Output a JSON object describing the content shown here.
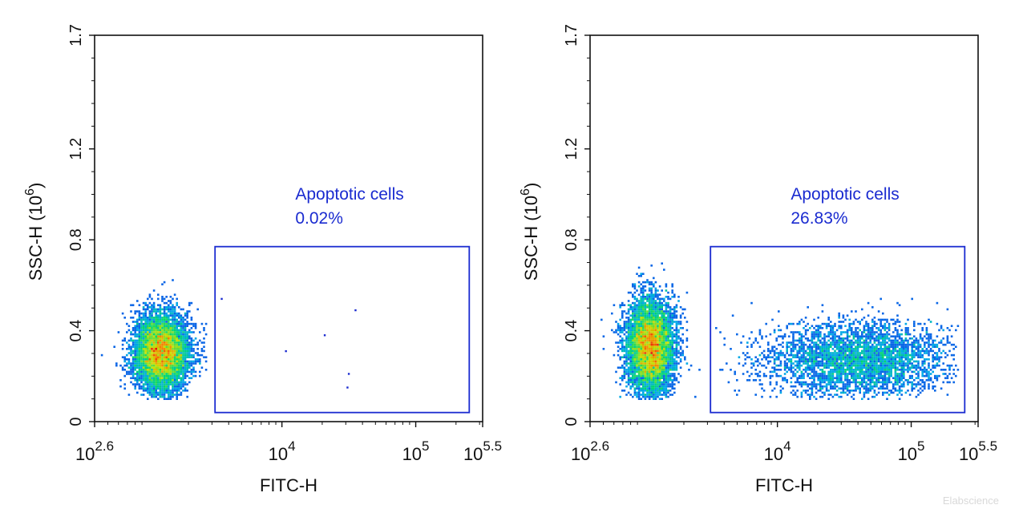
{
  "watermark": "Elabscience",
  "colors": {
    "axis": "#111111",
    "gate": "#1a2bd0"
  },
  "chart_data": [
    {
      "type": "scatter",
      "plot_style": "density-dot-plot",
      "xlabel": "FITC-H",
      "ylabel": "SSC-H",
      "ylabel_unit": {
        "base": "10",
        "exp": "6"
      },
      "x_scale": "log10",
      "xlim_exp": [
        2.6,
        5.5
      ],
      "x_ticks": [
        {
          "exp": 2.6,
          "base": "10",
          "sup": "2.6"
        },
        {
          "exp": 4,
          "base": "10",
          "sup": "4"
        },
        {
          "exp": 5,
          "base": "10",
          "sup": "5"
        },
        {
          "exp": 5.5,
          "base": "10",
          "sup": "5.5"
        }
      ],
      "ylim": [
        0,
        1.7
      ],
      "y_ticks": [
        {
          "value": 0,
          "label": "0"
        },
        {
          "value": 0.4,
          "label": "0.4"
        },
        {
          "value": 0.8,
          "label": "0.8"
        },
        {
          "value": 1.2,
          "label": "1.2"
        },
        {
          "value": 1.7,
          "label": "1.7"
        }
      ],
      "gate": {
        "label": "Apoptotic cells",
        "percent": "0.02%",
        "x_exp_range": [
          3.5,
          5.4
        ],
        "y_range": [
          0.04,
          0.77
        ]
      },
      "populations": [
        {
          "x_exp_center": 3.1,
          "y_center": 0.28,
          "x_exp_sd": 0.1,
          "y_sd": 0.08,
          "relative_count": 1.0,
          "x_exp_range": [
            2.61,
            3.47
          ],
          "y_range": [
            0.1,
            0.85
          ]
        }
      ],
      "outliers": [
        [
          3.55,
          0.54
        ],
        [
          4.03,
          0.31
        ],
        [
          4.32,
          0.38
        ],
        [
          4.55,
          0.49
        ],
        [
          4.5,
          0.21
        ],
        [
          4.49,
          0.15
        ]
      ]
    },
    {
      "type": "scatter",
      "plot_style": "density-dot-plot",
      "xlabel": "FITC-H",
      "ylabel": "SSC-H",
      "ylabel_unit": {
        "base": "10",
        "exp": "6"
      },
      "x_scale": "log10",
      "xlim_exp": [
        2.6,
        5.5
      ],
      "x_ticks": [
        {
          "exp": 2.6,
          "base": "10",
          "sup": "2.6"
        },
        {
          "exp": 4,
          "base": "10",
          "sup": "4"
        },
        {
          "exp": 5,
          "base": "10",
          "sup": "5"
        },
        {
          "exp": 5.5,
          "base": "10",
          "sup": "5.5"
        }
      ],
      "ylim": [
        0,
        1.7
      ],
      "y_ticks": [
        {
          "value": 0,
          "label": "0"
        },
        {
          "value": 0.4,
          "label": "0.4"
        },
        {
          "value": 0.8,
          "label": "0.8"
        },
        {
          "value": 1.2,
          "label": "1.2"
        },
        {
          "value": 1.7,
          "label": "1.7"
        }
      ],
      "gate": {
        "label": "Apoptotic cells",
        "percent": "26.83%",
        "x_exp_range": [
          3.5,
          5.4
        ],
        "y_range": [
          0.04,
          0.77
        ]
      },
      "populations": [
        {
          "x_exp_center": 3.05,
          "y_center": 0.3,
          "x_exp_sd": 0.09,
          "y_sd": 0.1,
          "relative_count": 1.0,
          "x_exp_range": [
            2.61,
            3.45
          ],
          "y_range": [
            0.1,
            0.9
          ]
        },
        {
          "x_exp_center": 4.6,
          "y_center": 0.25,
          "x_exp_sd": 0.35,
          "y_sd": 0.08,
          "relative_count": 0.55,
          "x_exp_range": [
            3.5,
            5.35
          ],
          "y_range": [
            0.1,
            0.8
          ]
        }
      ],
      "outliers": []
    }
  ]
}
